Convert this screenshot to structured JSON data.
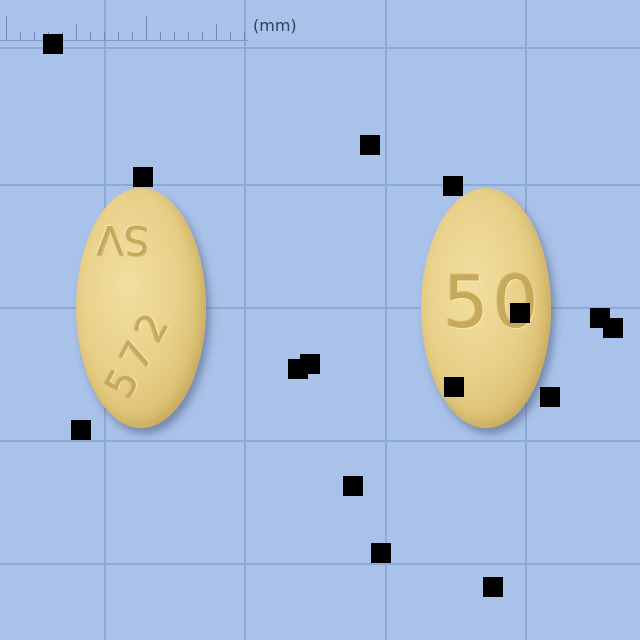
{
  "ruler": {
    "unit_label": "(mm)"
  },
  "pills": [
    {
      "color": "#e8d08a",
      "imprint_lines": [
        "SV",
        "572"
      ]
    },
    {
      "color": "#e8d08a",
      "imprint_lines": [
        "50"
      ]
    }
  ],
  "colors": {
    "background": "#a9c2ea",
    "grid_line": "#8fa9d6",
    "occlusion_square": "#000000"
  }
}
